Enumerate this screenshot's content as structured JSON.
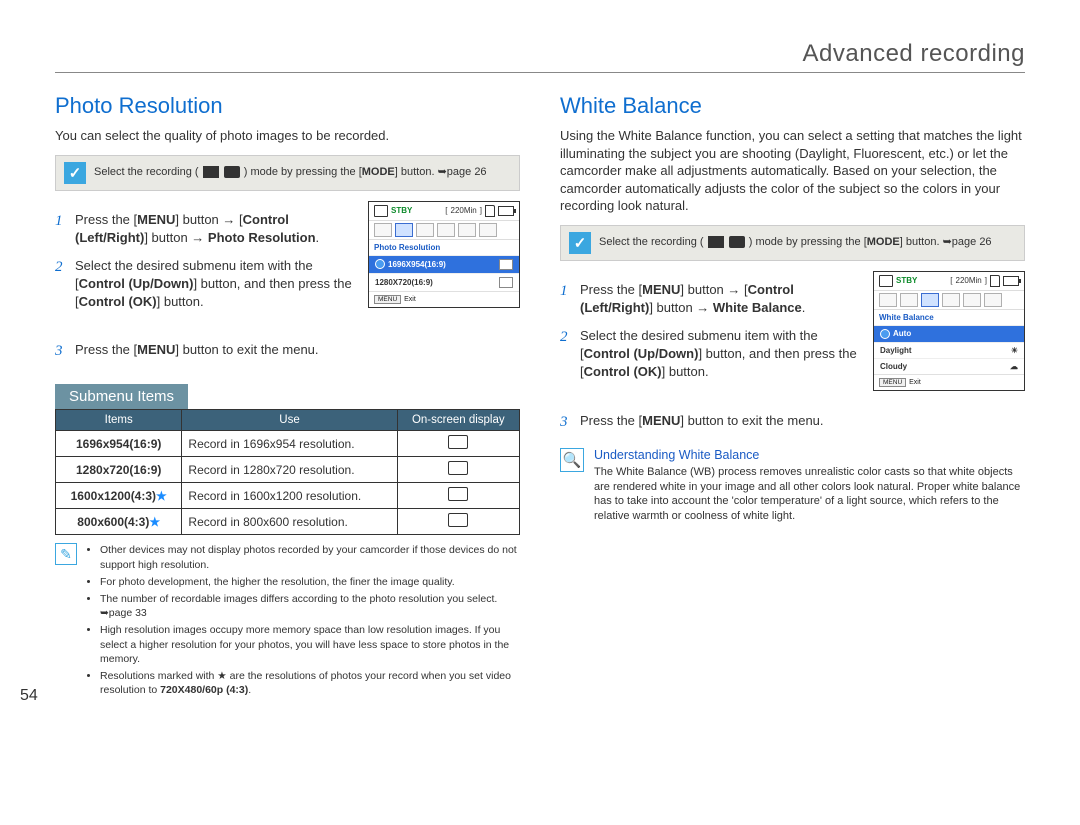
{
  "page_number": "54",
  "header_title": "Advanced recording",
  "left": {
    "title": "Photo Resolution",
    "intro": "You can select the quality of photo images to be recorded.",
    "mode_note_prefix": "Select the recording (",
    "mode_note_suffix": ") mode by pressing the [",
    "mode_note_bold": "MODE",
    "mode_note_end": "] button. ➥page 26",
    "steps": [
      "Press the [<b>MENU</b>] button → [<b>Control (Left/Right)</b>] button → <b>Photo Resolution</b>.",
      "Select the desired submenu item with the [<b>Control (Up/Down)</b>] button, and then press the [<b>Control (OK)</b>] button.",
      "Press the [<b>MENU</b>] button to exit the menu."
    ],
    "screenshot": {
      "stby": "STBY",
      "time": "220Min",
      "menu_title": "Photo Resolution",
      "item_selected": "1696X954(16:9)",
      "item2": "1280X720(16:9)",
      "exit_btn": "MENU",
      "exit_label": "Exit"
    },
    "submenu_title": "Submenu Items",
    "table_headers": [
      "Items",
      "Use",
      "On-screen display"
    ],
    "table_rows": [
      {
        "item": "1696x954(16:9)",
        "star": false,
        "use": "Record in 1696x954 resolution."
      },
      {
        "item": "1280x720(16:9)",
        "star": false,
        "use": "Record in 1280x720 resolution."
      },
      {
        "item": "1600x1200(4:3)",
        "star": true,
        "use": "Record in 1600x1200 resolution."
      },
      {
        "item": "800x600(4:3)",
        "star": true,
        "use": "Record in 800x600 resolution."
      }
    ],
    "footnotes": [
      "Other devices may not display photos recorded by your camcorder if those devices do not support high resolution.",
      "For photo development, the higher the resolution, the finer the image quality.",
      "The number of recordable images differs according to the photo resolution you select. ➥page 33",
      "High resolution images occupy more memory space than low resolution images. If you select a higher resolution for your photos, you will have less space to store photos in the memory.",
      "Resolutions marked with ★ are the resolutions of photos your record when you set video resolution to <b>720X480/60p (4:3)</b>."
    ]
  },
  "right": {
    "title": "White Balance",
    "intro": "Using the White Balance function, you can select a setting that matches the light illuminating the subject you are shooting (Daylight, Fluorescent, etc.) or let the camcorder make all adjustments automatically. Based on your selection, the camcorder automatically adjusts the color of the subject so the colors in your recording look natural.",
    "mode_note_prefix": "Select the recording (",
    "mode_note_suffix": ") mode by pressing the [",
    "mode_note_bold": "MODE",
    "mode_note_end": "] button. ➥page 26",
    "steps": [
      "Press the [<b>MENU</b>] button → [<b>Control (Left/Right)</b>] button → <b>White Balance</b>.",
      "Select the desired submenu item with the [<b>Control (Up/Down)</b>] button, and then press the [<b>Control (OK)</b>] button.",
      "Press the [<b>MENU</b>] button to exit the menu."
    ],
    "screenshot": {
      "stby": "STBY",
      "time": "220Min",
      "menu_title": "White Balance",
      "item_selected": "Auto",
      "item2": "Daylight",
      "item3": "Cloudy",
      "exit_btn": "MENU",
      "exit_label": "Exit"
    },
    "understand_title": "Understanding White Balance",
    "understand_body": "The White Balance (WB) process removes unrealistic color casts so that white objects are rendered white in your image and all other colors look natural. Proper white balance has to take into account the 'color temperature' of a light source, which refers to the relative warmth or coolness of white light."
  },
  "colors": {
    "heading_blue": "#0f6ecf",
    "tab_bg": "#6c92a2",
    "th_bg": "#3c627a",
    "accent": "#3ba7e0"
  }
}
